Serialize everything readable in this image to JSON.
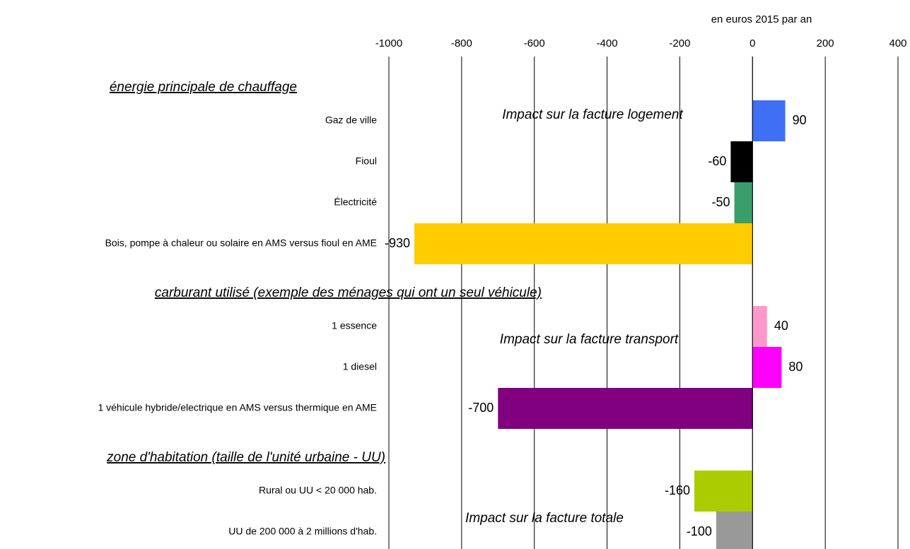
{
  "chart_data": {
    "type": "bar",
    "orientation": "horizontal",
    "xlabel": "en euros 2015 par an",
    "xlim": [
      -1000,
      400
    ],
    "xticks": [
      -1000,
      -800,
      -600,
      -400,
      -200,
      0,
      200,
      400
    ],
    "grid": true,
    "groups": [
      {
        "name": "énergie principale de chauffage",
        "annotation": "Impact sur la facture logement",
        "categories": [
          "Gaz de ville",
          "Fioul",
          "Électricité",
          "Bois, pompe à chaleur ou solaire en AMS versus fioul en AME"
        ],
        "values": [
          90,
          -60,
          -50,
          -930
        ],
        "colors": [
          "#3f6ff5",
          "#000000",
          "#3a9e6a",
          "#ffcc00"
        ]
      },
      {
        "name": "carburant utilisé (exemple des ménages qui ont un seul véhicule)",
        "annotation": "Impact sur la facture transport",
        "categories": [
          "1 essence",
          "1 diesel",
          "1 véhicule hybride/electrique en AMS versus thermique en AME"
        ],
        "values": [
          40,
          80,
          -700
        ],
        "colors": [
          "#ff99cc",
          "#ff00ff",
          "#800080"
        ]
      },
      {
        "name": "zone d'habitation (taille de l'unité urbaine - UU)",
        "annotation": "Impact sur la facture totale",
        "categories": [
          "Rural ou UU < 20 000 hab.",
          "UU de 200 000 à 2 millions d'hab."
        ],
        "values": [
          -160,
          -100
        ],
        "colors": [
          "#aacc00",
          "#999999"
        ]
      }
    ]
  }
}
